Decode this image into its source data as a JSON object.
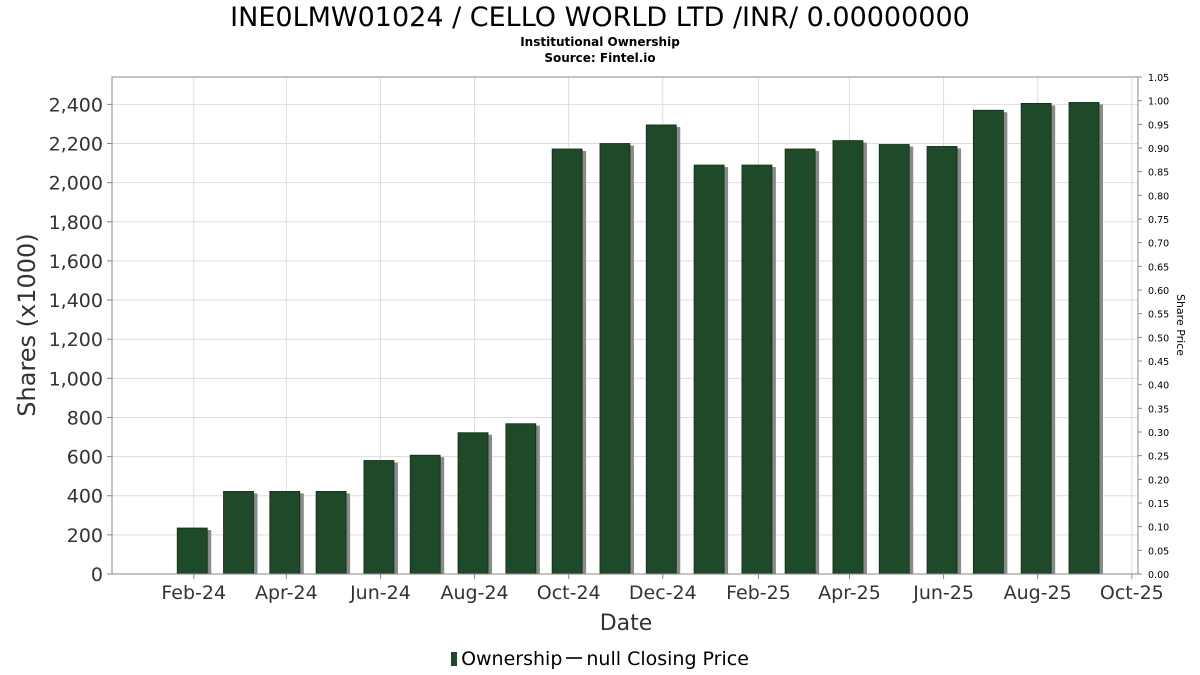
{
  "header": {
    "title": "INE0LMW01024 / CELLO WORLD LTD /INR/ 0.00000000",
    "subtitle": "Institutional Ownership",
    "source": "Source: Fintel.io"
  },
  "legend": {
    "ownership_label": "Ownership",
    "price_label": "null Closing Price"
  },
  "colors": {
    "bar": "#1e4a2a",
    "bar_shadow": "#8a8a8a",
    "grid": "#dddddd"
  },
  "chart_data": {
    "type": "bar",
    "title": "INE0LMW01024 / CELLO WORLD LTD /INR/ 0.00000000",
    "subtitle": "Institutional Ownership",
    "xlabel": "Date",
    "ylabel": "Shares (x1000)",
    "y2label": "Share Price",
    "xlim": [
      "2023-12-10",
      "2025-10-05"
    ],
    "ylim": [
      0,
      2540
    ],
    "y2lim": [
      0,
      1.05
    ],
    "grid": true,
    "legend_position": "bottom",
    "x_ticks": [
      {
        "date": "2024-02-01",
        "label": "Feb-24"
      },
      {
        "date": "2024-04-01",
        "label": "Apr-24"
      },
      {
        "date": "2024-06-01",
        "label": "Jun-24"
      },
      {
        "date": "2024-08-01",
        "label": "Aug-24"
      },
      {
        "date": "2024-10-01",
        "label": "Oct-24"
      },
      {
        "date": "2024-12-01",
        "label": "Dec-24"
      },
      {
        "date": "2025-02-01",
        "label": "Feb-25"
      },
      {
        "date": "2025-04-01",
        "label": "Apr-25"
      },
      {
        "date": "2025-06-01",
        "label": "Jun-25"
      },
      {
        "date": "2025-08-01",
        "label": "Aug-25"
      },
      {
        "date": "2025-10-01",
        "label": "Oct-25"
      }
    ],
    "y_ticks": [
      0,
      200,
      400,
      600,
      800,
      1000,
      1200,
      1400,
      1600,
      1800,
      2000,
      2200,
      2400
    ],
    "y_tick_labels": [
      "0",
      "200",
      "400",
      "600",
      "800",
      "1,000",
      "1,200",
      "1,400",
      "1,600",
      "1,800",
      "2,000",
      "2,200",
      "2,400"
    ],
    "y2_ticks": [
      "0.00",
      "0.05",
      "0.10",
      "0.15",
      "0.20",
      "0.25",
      "0.30",
      "0.35",
      "0.40",
      "0.45",
      "0.50",
      "0.55",
      "0.60",
      "0.65",
      "0.70",
      "0.75",
      "0.80",
      "0.85",
      "0.90",
      "0.95",
      "1.00",
      "1.05"
    ],
    "series": [
      {
        "name": "Ownership",
        "x": [
          "2024-01-31",
          "2024-03-01",
          "2024-03-31",
          "2024-04-30",
          "2024-05-31",
          "2024-06-30",
          "2024-07-31",
          "2024-08-31",
          "2024-09-30",
          "2024-10-31",
          "2024-11-30",
          "2024-12-31",
          "2025-01-31",
          "2025-02-28",
          "2025-03-31",
          "2025-04-30",
          "2025-05-31",
          "2025-06-30",
          "2025-07-31",
          "2025-08-31"
        ],
        "values": [
          235,
          422,
          422,
          422,
          580,
          607,
          722,
          768,
          2172,
          2200,
          2295,
          2090,
          2090,
          2172,
          2215,
          2195,
          2185,
          2370,
          2405,
          2410
        ]
      }
    ]
  }
}
